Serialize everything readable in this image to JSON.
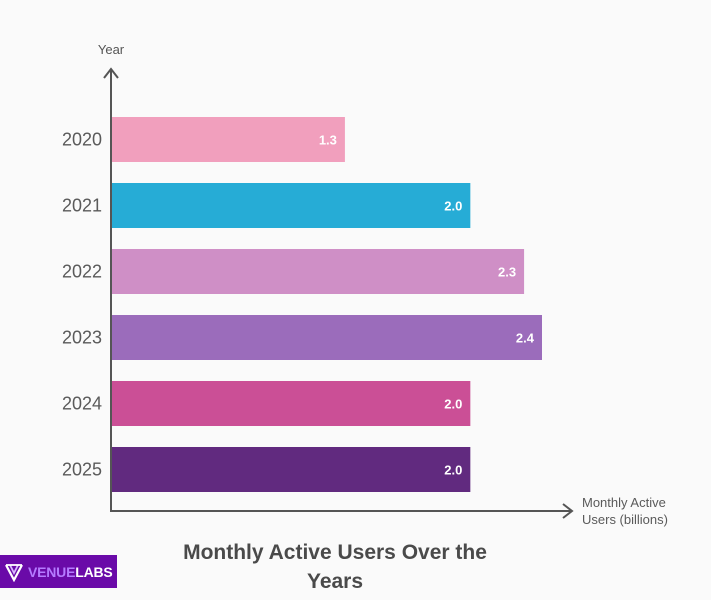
{
  "chart_data": {
    "type": "bar",
    "orientation": "horizontal",
    "title": "Monthly Active Users Over the Years",
    "title_lines": [
      "Monthly Active Users Over the",
      "Years"
    ],
    "ylabel": "Year",
    "xlabel": "Monthly Active Users (billions)",
    "xlabel_lines": [
      "Monthly Active",
      "Users (billions)"
    ],
    "categories": [
      "2020",
      "2021",
      "2022",
      "2023",
      "2024",
      "2025"
    ],
    "values": [
      1.3,
      2.0,
      2.3,
      2.4,
      2.0,
      2.0
    ],
    "data_labels": [
      "1.3",
      "2.0",
      "2.3",
      "2.4",
      "2.0",
      "2.0"
    ],
    "colors": [
      "#f19fbd",
      "#26acd6",
      "#cf8fc6",
      "#9b6cbb",
      "#cb4f96",
      "#612a7f"
    ],
    "xlim": [
      0,
      2.4
    ],
    "grid": false,
    "legend": "none"
  },
  "branding": {
    "logo_part1": "VENUE",
    "logo_part2": "LABS",
    "logo_colors": {
      "background": "#6a0aa8",
      "accent": "#b57bff",
      "text": "#ffffff"
    }
  }
}
